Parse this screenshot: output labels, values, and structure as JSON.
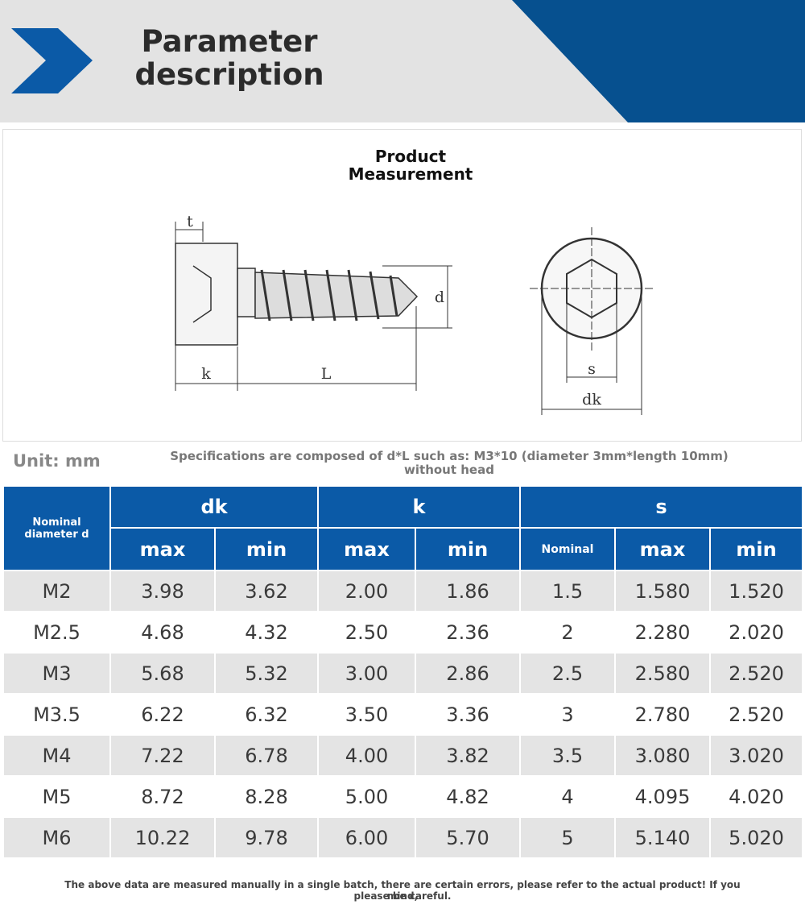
{
  "header": {
    "title_lines": [
      "Parameter",
      "description"
    ]
  },
  "diagram": {
    "title_lines": [
      "Product",
      "Measurement"
    ],
    "labels": {
      "t": "t",
      "k": "k",
      "L": "L",
      "d": "d",
      "s": "s",
      "dk": "dk"
    }
  },
  "unit": "Unit: mm",
  "note_lines": [
    "Specifications are composed of d*L such as: M3*10 (diameter 3mm*length 10mm)",
    "without head"
  ],
  "table": {
    "groups": [
      "Nominal diameter d",
      "dk",
      "k",
      "s"
    ],
    "subheaders": [
      "max",
      "min",
      "max",
      "min",
      "Nominal",
      "max",
      "min"
    ],
    "rows": [
      [
        "M2",
        "3.98",
        "3.62",
        "2.00",
        "1.86",
        "1.5",
        "1.580",
        "1.520"
      ],
      [
        "M2.5",
        "4.68",
        "4.32",
        "2.50",
        "2.36",
        "2",
        "2.280",
        "2.020"
      ],
      [
        "M3",
        "5.68",
        "5.32",
        "3.00",
        "2.86",
        "2.5",
        "2.580",
        "2.520"
      ],
      [
        "M3.5",
        "6.22",
        "6.32",
        "3.50",
        "3.36",
        "3",
        "2.780",
        "2.520"
      ],
      [
        "M4",
        "7.22",
        "6.78",
        "4.00",
        "3.82",
        "3.5",
        "3.080",
        "3.020"
      ],
      [
        "M5",
        "8.72",
        "8.28",
        "5.00",
        "4.82",
        "4",
        "4.095",
        "4.020"
      ],
      [
        "M6",
        "10.22",
        "9.78",
        "6.00",
        "5.70",
        "5",
        "5.140",
        "5.020"
      ]
    ]
  },
  "footer_lines": [
    "The above data are measured manually in a single batch, there are certain errors, please refer to the actual product! If you mind,",
    "please be careful."
  ]
}
